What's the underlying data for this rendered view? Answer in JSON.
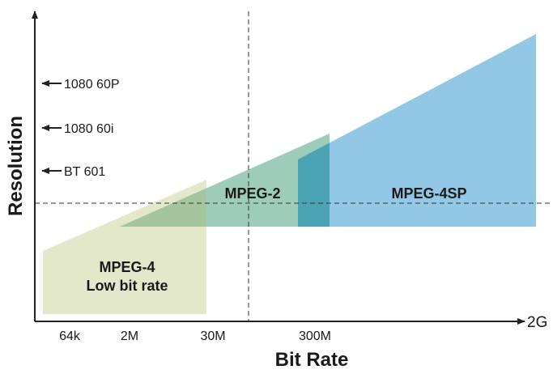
{
  "diagram": {
    "x_axis": {
      "title": "Bit Rate",
      "ticks": [
        "64k",
        "2M",
        "30M",
        "300M"
      ],
      "end_label": "2G"
    },
    "y_axis": {
      "title": "Resolution",
      "markers": [
        "1080 60P",
        "1080 60i",
        "BT 601"
      ]
    },
    "regions": [
      {
        "id": "mpeg4-low",
        "label_lines": [
          "MPEG-4",
          "Low bit rate"
        ],
        "color": "#e2e8c9"
      },
      {
        "id": "mpeg2",
        "label": "MPEG-2",
        "color": "#9dccbb"
      },
      {
        "id": "mpeg4sp",
        "label": "MPEG-4SP",
        "color": "#92c8e6"
      }
    ],
    "overlap_colors": {
      "mpeg4low_mpeg2": "#a5c59f",
      "mpeg2_mpeg4sp": "#4aa4b4"
    },
    "line_color": "#333333"
  }
}
